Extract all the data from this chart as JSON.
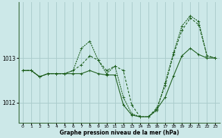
{
  "title": "Graphe pression niveau de la mer (hPa)",
  "background_color": "#cce8e8",
  "grid_color": "#aacccc",
  "line_color": "#1a5c1a",
  "xlim": [
    -0.5,
    23.5
  ],
  "ylim": [
    1011.55,
    1014.25
  ],
  "yticks": [
    1012,
    1013
  ],
  "xticks": [
    0,
    1,
    2,
    3,
    4,
    5,
    6,
    7,
    8,
    9,
    10,
    11,
    12,
    13,
    14,
    15,
    16,
    17,
    18,
    19,
    20,
    21,
    22,
    23
  ],
  "series1": {
    "x": [
      0,
      1,
      2,
      3,
      4,
      5,
      6,
      7,
      8,
      9,
      10,
      11,
      12,
      13,
      14,
      15,
      16,
      17,
      18,
      19,
      20,
      21,
      22,
      23
    ],
    "y": [
      1012.72,
      1012.72,
      1012.58,
      1012.65,
      1012.65,
      1012.65,
      1012.65,
      1012.65,
      1012.72,
      1012.65,
      1012.62,
      1012.62,
      1011.95,
      1011.72,
      1011.68,
      1011.68,
      1011.85,
      1012.12,
      1012.6,
      1013.05,
      1013.22,
      1013.08,
      1013.0,
      1013.0
    ]
  },
  "series2": {
    "x": [
      0,
      1,
      2,
      3,
      4,
      5,
      6,
      7,
      8,
      9,
      10,
      11,
      12,
      13,
      14,
      15,
      16,
      17,
      18,
      19,
      20,
      21,
      22,
      23
    ],
    "y": [
      1012.72,
      1012.72,
      1012.58,
      1012.65,
      1012.65,
      1012.65,
      1012.72,
      1012.85,
      1013.05,
      1012.95,
      1012.72,
      1012.82,
      1012.72,
      1011.95,
      1011.68,
      1011.68,
      1011.88,
      1012.38,
      1013.08,
      1013.62,
      1013.9,
      1013.75,
      1013.05,
      1013.0
    ]
  },
  "series3": {
    "x": [
      0,
      1,
      2,
      3,
      4,
      5,
      6,
      7,
      8,
      9,
      10,
      11,
      12,
      13,
      14,
      15,
      16,
      17,
      18,
      19,
      20,
      21,
      22,
      23
    ],
    "y": [
      1012.72,
      1012.72,
      1012.58,
      1012.65,
      1012.65,
      1012.65,
      1012.72,
      1013.22,
      1013.38,
      1012.95,
      1012.65,
      1012.82,
      1012.12,
      1011.75,
      1011.68,
      1011.68,
      1011.82,
      1012.45,
      1013.12,
      1013.72,
      1013.95,
      1013.82,
      1013.05,
      1013.0
    ]
  }
}
